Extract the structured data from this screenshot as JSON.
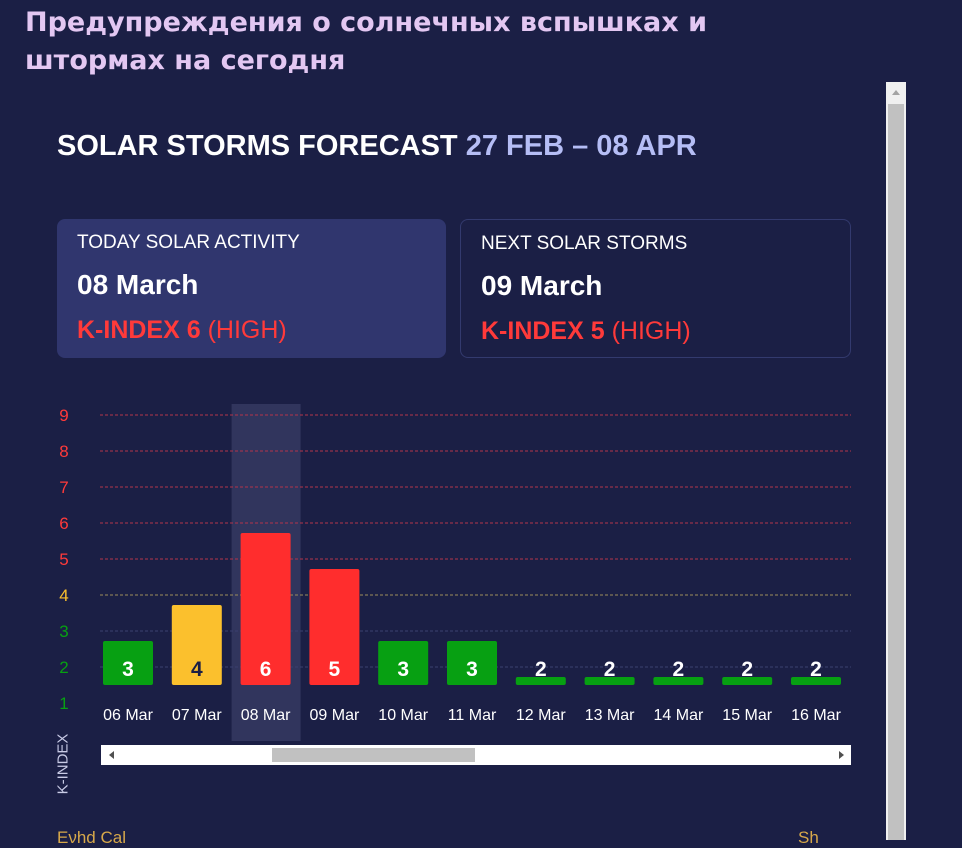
{
  "page": {
    "heading": "Предупреждения о солнечных вспышках и штормах на сегодня"
  },
  "widget": {
    "title": "SOLAR STORMS FORECAST",
    "date_range": "27 FEB – 08 APR"
  },
  "today_card": {
    "label": "TODAY SOLAR ACTIVITY",
    "date": "08 March",
    "kindex_label": "K-INDEX 6",
    "level": "(HIGH)"
  },
  "next_card": {
    "label": "NEXT SOLAR STORMS",
    "date": "09 March",
    "kindex_label": "K-INDEX 5",
    "level": "(HIGH)"
  },
  "colors": {
    "background": "#1b1f45",
    "green": "#07a012",
    "yellow": "#fbc02d",
    "red": "#ff2d2d",
    "highlight": "#3a3e66"
  },
  "chart_data": {
    "type": "bar",
    "ylabel": "K-INDEX",
    "y_ticks": [
      "1",
      "2",
      "3",
      "4",
      "5",
      "6",
      "7",
      "8",
      "9"
    ],
    "ylim": [
      1,
      9
    ],
    "categories": [
      "06 Mar",
      "07 Mar",
      "08 Mar",
      "09 Mar",
      "10 Mar",
      "11 Mar",
      "12 Mar",
      "13 Mar",
      "14 Mar",
      "15 Mar",
      "16 Mar"
    ],
    "values": [
      3,
      4,
      6,
      5,
      3,
      3,
      2,
      2,
      2,
      2,
      2
    ],
    "highlighted_category": "08 Mar",
    "grid": true
  },
  "footer": {
    "left": "Eνhd Cal",
    "right": "Sh"
  }
}
